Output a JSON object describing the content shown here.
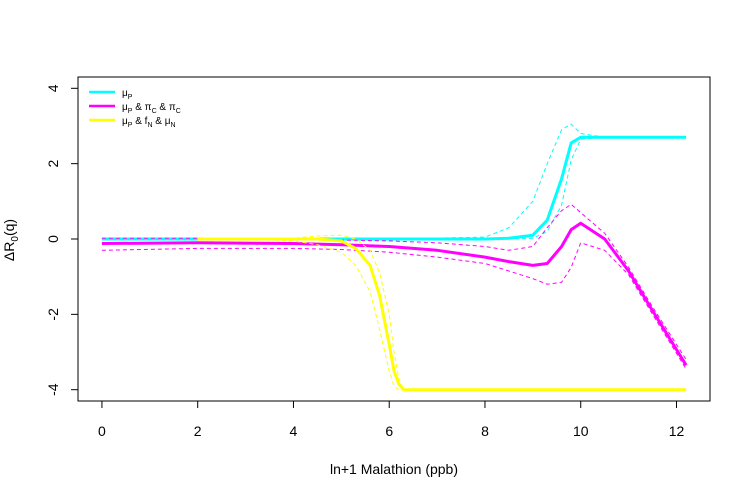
{
  "chart_data": {
    "type": "line",
    "title": "",
    "xlabel": "ln+1 Malathion (ppb)",
    "ylabel": "ΔR0(q)",
    "xlim": [
      -0.5,
      12.7
    ],
    "ylim": [
      -4.3,
      4.3
    ],
    "xticks": [
      0,
      2,
      4,
      6,
      8,
      10,
      12
    ],
    "yticks": [
      -4,
      -2,
      0,
      2,
      4
    ],
    "grid": false,
    "legend_position": "top-left",
    "series": [
      {
        "name": "μP",
        "color": "#00FFFF",
        "x": [
          0,
          2,
          4,
          6,
          8,
          8.5,
          9,
          9.3,
          9.6,
          9.8,
          10,
          10.5,
          11,
          12.2
        ],
        "mean": [
          0,
          0,
          0,
          0,
          0,
          0.02,
          0.1,
          0.5,
          1.6,
          2.55,
          2.7,
          2.7,
          2.7,
          2.7
        ],
        "upper": [
          0,
          0,
          0,
          0,
          0.05,
          0.3,
          1.0,
          2.0,
          2.9,
          3.05,
          2.8,
          2.7,
          2.7,
          2.7
        ],
        "lower": [
          0,
          0,
          0,
          0,
          0,
          0.0,
          0.02,
          0.2,
          0.9,
          2.1,
          2.65,
          2.7,
          2.7,
          2.7
        ]
      },
      {
        "name": "μP & πC & πC",
        "color": "#FF00FF",
        "x": [
          0,
          2,
          4,
          5,
          6,
          7,
          8,
          8.5,
          9,
          9.3,
          9.6,
          9.8,
          10,
          10.5,
          11,
          11.5,
          12.2
        ],
        "mean": [
          -0.12,
          -0.1,
          -0.12,
          -0.15,
          -0.2,
          -0.3,
          -0.48,
          -0.6,
          -0.7,
          -0.65,
          -0.2,
          0.25,
          0.42,
          0.0,
          -0.85,
          -1.9,
          -3.35
        ],
        "upper": [
          0.02,
          0.02,
          0.0,
          -0.03,
          -0.05,
          -0.1,
          -0.2,
          -0.3,
          -0.2,
          0.3,
          0.75,
          0.92,
          0.7,
          0.15,
          -0.75,
          -1.8,
          -3.2
        ],
        "lower": [
          -0.3,
          -0.25,
          -0.25,
          -0.28,
          -0.35,
          -0.48,
          -0.65,
          -0.85,
          -1.05,
          -1.2,
          -1.15,
          -0.75,
          -0.1,
          -0.3,
          -0.95,
          -2.0,
          -3.45
        ]
      },
      {
        "name": "μP & fN & μN",
        "color": "#FFFF00",
        "x": [
          2,
          3,
          4,
          4.5,
          5,
          5.3,
          5.6,
          5.8,
          6.0,
          6.1,
          6.2,
          6.3,
          7,
          8,
          9,
          10,
          11,
          12.2
        ],
        "mean": [
          0,
          0,
          0,
          0,
          -0.05,
          -0.25,
          -0.7,
          -1.5,
          -2.8,
          -3.5,
          -3.85,
          -4,
          -4,
          -4,
          -4,
          -4,
          -4,
          -4
        ],
        "upper": [
          0,
          0,
          0.02,
          0.08,
          0.1,
          0.0,
          -0.3,
          -0.9,
          -2.0,
          -3.0,
          -3.7,
          -4,
          -4,
          -4,
          -4,
          -4,
          -4,
          -4
        ],
        "lower": [
          0,
          0,
          -0.05,
          -0.15,
          -0.35,
          -0.7,
          -1.4,
          -2.4,
          -3.5,
          -3.9,
          -4,
          -4,
          -4,
          -4,
          -4,
          -4,
          -4,
          -4
        ]
      }
    ]
  }
}
